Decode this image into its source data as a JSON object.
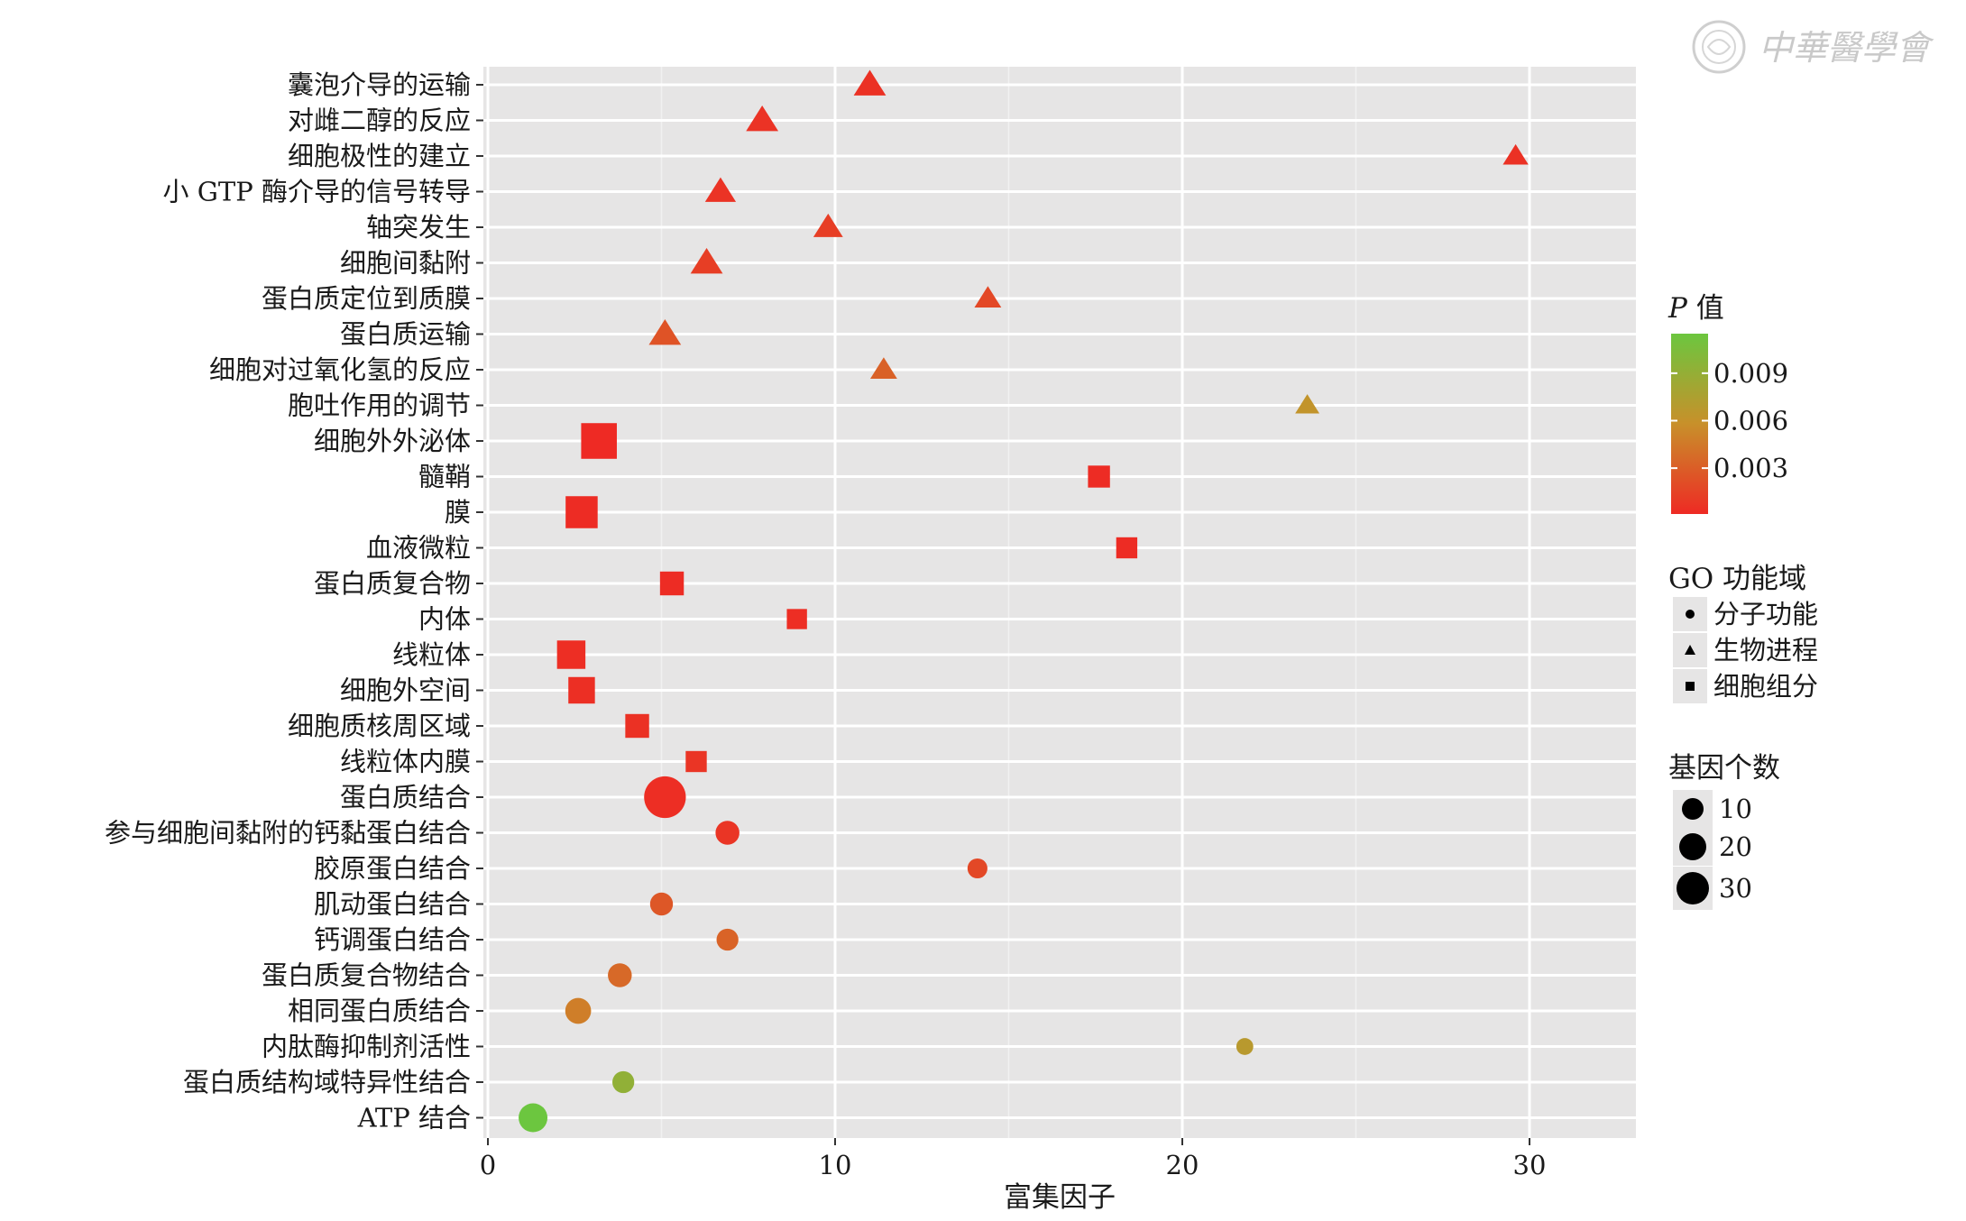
{
  "chart_data": {
    "type": "scatter",
    "xlabel": "富集因子",
    "ylabel": "",
    "xlim": [
      0,
      33.2
    ],
    "xticks": [
      "0",
      "10",
      "20",
      "30"
    ],
    "xtick_values": [
      0,
      10,
      20,
      30
    ],
    "grid": true,
    "legend_placement": "right",
    "categories": [
      "囊泡介导的运输",
      "对雌二醇的反应",
      "细胞极性的建立",
      "小 GTP 酶介导的信号转导",
      "轴突发生",
      "细胞间黏附",
      "蛋白质定位到质膜",
      "蛋白质运输",
      "细胞对过氧化氢的反应",
      "胞吐作用的调节",
      "细胞外外泌体",
      "髓鞘",
      "膜",
      "血液微粒",
      "蛋白质复合物",
      "内体",
      "线粒体",
      "细胞外空间",
      "细胞质核周区域",
      "线粒体内膜",
      "蛋白质结合",
      "参与细胞间黏附的钙黏蛋白结合",
      "胶原蛋白结合",
      "肌动蛋白结合",
      "钙调蛋白结合",
      "蛋白质复合物结合",
      "相同蛋白质结合",
      "内肽酶抑制剂活性",
      "蛋白质结构域特异性结合",
      "ATP 结合"
    ],
    "points": [
      {
        "category": "囊泡介导的运输",
        "x": 11.0,
        "domain": "生物进程",
        "p": 0.0005,
        "count": 15
      },
      {
        "category": "对雌二醇的反应",
        "x": 7.9,
        "domain": "生物进程",
        "p": 0.0006,
        "count": 15
      },
      {
        "category": "细胞极性的建立",
        "x": 29.6,
        "domain": "生物进程",
        "p": 0.0005,
        "count": 10
      },
      {
        "category": "小 GTP 酶介导的信号转导",
        "x": 6.7,
        "domain": "生物进程",
        "p": 0.0006,
        "count": 14
      },
      {
        "category": "轴突发生",
        "x": 9.8,
        "domain": "生物进程",
        "p": 0.0012,
        "count": 13
      },
      {
        "category": "细胞间黏附",
        "x": 6.3,
        "domain": "生物进程",
        "p": 0.0012,
        "count": 15
      },
      {
        "category": "蛋白质定位到质膜",
        "x": 14.4,
        "domain": "生物进程",
        "p": 0.0018,
        "count": 11
      },
      {
        "category": "蛋白质运输",
        "x": 5.1,
        "domain": "生物进程",
        "p": 0.0024,
        "count": 15
      },
      {
        "category": "细胞对过氧化氢的反应",
        "x": 11.4,
        "domain": "生物进程",
        "p": 0.0032,
        "count": 11
      },
      {
        "category": "胞吐作用的调节",
        "x": 23.6,
        "domain": "生物进程",
        "p": 0.0062,
        "count": 9
      },
      {
        "category": "细胞外外泌体",
        "x": 3.2,
        "domain": "细胞组分",
        "p": 0.0001,
        "count": 30
      },
      {
        "category": "髓鞘",
        "x": 17.6,
        "domain": "细胞组分",
        "p": 0.0002,
        "count": 15
      },
      {
        "category": "膜",
        "x": 2.7,
        "domain": "细胞组分",
        "p": 0.0002,
        "count": 26
      },
      {
        "category": "血液微粒",
        "x": 18.4,
        "domain": "细胞组分",
        "p": 0.0002,
        "count": 14
      },
      {
        "category": "蛋白质复合物",
        "x": 5.3,
        "domain": "细胞组分",
        "p": 0.0002,
        "count": 17
      },
      {
        "category": "内体",
        "x": 8.9,
        "domain": "细胞组分",
        "p": 0.0003,
        "count": 13
      },
      {
        "category": "线粒体",
        "x": 2.4,
        "domain": "细胞组分",
        "p": 0.0003,
        "count": 22
      },
      {
        "category": "细胞外空间",
        "x": 2.7,
        "domain": "细胞组分",
        "p": 0.0004,
        "count": 20
      },
      {
        "category": "细胞质核周区域",
        "x": 4.3,
        "domain": "细胞组分",
        "p": 0.0005,
        "count": 17
      },
      {
        "category": "线粒体内膜",
        "x": 6.0,
        "domain": "细胞组分",
        "p": 0.0007,
        "count": 14
      },
      {
        "category": "蛋白质结合",
        "x": 5.1,
        "domain": "分子功能",
        "p": 0.0003,
        "count": 33
      },
      {
        "category": "参与细胞间黏附的钙黏蛋白结合",
        "x": 6.9,
        "domain": "分子功能",
        "p": 0.0007,
        "count": 15
      },
      {
        "category": "胶原蛋白结合",
        "x": 14.1,
        "domain": "分子功能",
        "p": 0.0018,
        "count": 11
      },
      {
        "category": "肌动蛋白结合",
        "x": 5.0,
        "domain": "分子功能",
        "p": 0.0026,
        "count": 14
      },
      {
        "category": "钙调蛋白结合",
        "x": 6.9,
        "domain": "分子功能",
        "p": 0.0033,
        "count": 13
      },
      {
        "category": "蛋白质复合物结合",
        "x": 3.8,
        "domain": "分子功能",
        "p": 0.0036,
        "count": 15
      },
      {
        "category": "相同蛋白质结合",
        "x": 2.6,
        "domain": "分子功能",
        "p": 0.0048,
        "count": 17
      },
      {
        "category": "内肽酶抑制剂活性",
        "x": 21.8,
        "domain": "分子功能",
        "p": 0.0068,
        "count": 8
      },
      {
        "category": "蛋白质结构域特异性结合",
        "x": 3.9,
        "domain": "分子功能",
        "p": 0.0092,
        "count": 13
      },
      {
        "category": "ATP 结合",
        "x": 1.3,
        "domain": "分子功能",
        "p": 0.0115,
        "count": 20
      }
    ],
    "color_legend": {
      "title_italic": "P",
      "title_rest": " 值",
      "ticks": [
        "0.009",
        "0.006",
        "0.003"
      ],
      "tick_values": [
        0.009,
        0.006,
        0.003
      ],
      "range": [
        0.0001,
        0.0115
      ],
      "low_color": "#ee2a24",
      "mid_color": "#c8902a",
      "high_color": "#6cc63f"
    },
    "shape_legend": {
      "title": "GO 功能域",
      "items": [
        {
          "label": "分子功能",
          "shape": "circle"
        },
        {
          "label": "生物进程",
          "shape": "triangle"
        },
        {
          "label": "细胞组分",
          "shape": "square"
        }
      ]
    },
    "size_legend": {
      "title": "基因个数",
      "items": [
        {
          "label": "10",
          "value": 10
        },
        {
          "label": "20",
          "value": 20
        },
        {
          "label": "30",
          "value": 30
        }
      ]
    }
  },
  "watermark": {
    "seal": "中华医学会",
    "text": "中華醫學會"
  }
}
